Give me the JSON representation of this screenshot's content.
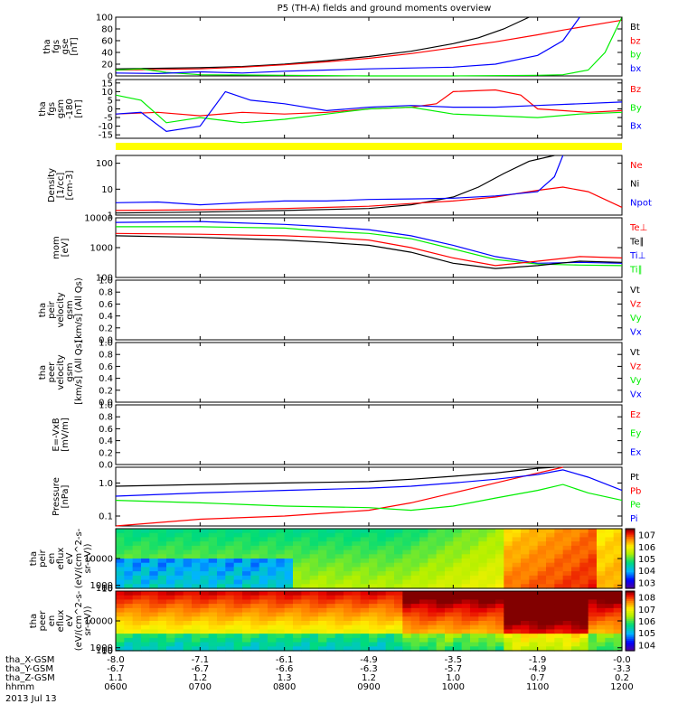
{
  "title": "P5 (TH-A) fields and ground moments overview",
  "date_label": "2013 Jul 13",
  "colors": {
    "black": "#000000",
    "red": "#ff0000",
    "green": "#00ee00",
    "blue": "#0000ff",
    "yellow": "#ffff00"
  },
  "chart_data": [
    {
      "type": "line",
      "ylabel": [
        "tha",
        "fgs",
        "gse",
        "[nT]"
      ],
      "ylim": [
        0,
        100
      ],
      "yticks": [
        "0",
        "20",
        "40",
        "60",
        "80",
        "100"
      ],
      "legend": [
        {
          "name": "Bt",
          "color": "#000000"
        },
        {
          "name": "bz",
          "color": "#ff0000"
        },
        {
          "name": "by",
          "color": "#00ee00"
        },
        {
          "name": "bx",
          "color": "#0000ff"
        }
      ],
      "series": [
        {
          "name": "Bt",
          "color": "#000000",
          "x": [
            6.0,
            7.0,
            7.5,
            8.0,
            8.5,
            9.0,
            9.5,
            10.0,
            10.3,
            10.6,
            10.9
          ],
          "y": [
            12,
            14,
            16,
            20,
            26,
            33,
            42,
            55,
            65,
            80,
            100
          ]
        },
        {
          "name": "bz",
          "color": "#ff0000",
          "x": [
            6.0,
            7.0,
            7.5,
            8.0,
            8.5,
            9.0,
            9.5,
            10.0,
            10.5,
            11.0,
            11.3,
            12.0
          ],
          "y": [
            10,
            12,
            15,
            19,
            24,
            30,
            38,
            48,
            58,
            70,
            78,
            95
          ]
        },
        {
          "name": "by",
          "color": "#00ee00",
          "x": [
            6.0,
            6.3,
            6.6,
            7.0,
            8.0,
            9.0,
            10.0,
            11.0,
            11.3,
            11.6,
            11.8,
            12.0
          ],
          "y": [
            10,
            12,
            6,
            2,
            1,
            0,
            0,
            1,
            2,
            10,
            40,
            100
          ]
        },
        {
          "name": "bx",
          "color": "#0000ff",
          "x": [
            6.0,
            6.5,
            7.0,
            7.5,
            8.0,
            8.5,
            9.0,
            10.0,
            10.5,
            11.0,
            11.3,
            11.5
          ],
          "y": [
            5,
            4,
            7,
            5,
            8,
            10,
            12,
            15,
            20,
            35,
            60,
            100
          ]
        }
      ]
    },
    {
      "type": "line",
      "ylabel": [
        "tha",
        "fgs",
        "gsm",
        "-180",
        "[nT]"
      ],
      "ylim": [
        -17,
        17
      ],
      "yticks": [
        "-15",
        "-10",
        "-5",
        "0",
        "5",
        "10",
        "15"
      ],
      "legend": [
        {
          "name": "Bz",
          "color": "#ff0000"
        },
        {
          "name": "By",
          "color": "#00ee00"
        },
        {
          "name": "Bx",
          "color": "#0000ff"
        }
      ],
      "series": [
        {
          "name": "Bz",
          "color": "#ff0000",
          "x": [
            6.0,
            6.5,
            7.0,
            7.5,
            8.0,
            8.5,
            9.0,
            9.5,
            9.8,
            10.0,
            10.5,
            10.8,
            11.0,
            11.3,
            11.6,
            12.0
          ],
          "y": [
            -3,
            -2,
            -4,
            -2,
            -3,
            -2,
            0,
            1,
            3,
            10,
            11,
            8,
            0,
            -1,
            -2,
            -1
          ]
        },
        {
          "name": "By",
          "color": "#00ee00",
          "x": [
            6.0,
            6.3,
            6.6,
            7.0,
            7.5,
            8.0,
            8.5,
            9.0,
            9.5,
            10.0,
            10.5,
            11.0,
            11.5,
            12.0
          ],
          "y": [
            8,
            5,
            -8,
            -5,
            -8,
            -6,
            -3,
            0,
            1,
            -3,
            -4,
            -5,
            -3,
            -2
          ]
        },
        {
          "name": "Bx",
          "color": "#0000ff",
          "x": [
            6.0,
            6.3,
            6.6,
            7.0,
            7.3,
            7.6,
            8.0,
            8.5,
            9.0,
            9.5,
            10.0,
            10.5,
            11.0,
            11.5,
            12.0
          ],
          "y": [
            -3,
            -2,
            -13,
            -10,
            10,
            5,
            3,
            -1,
            1,
            2,
            1,
            1,
            2,
            3,
            4
          ]
        }
      ]
    },
    {
      "type": "line",
      "log": true,
      "ylabel": [
        "Density",
        "[1/cc]",
        "[cm-3]"
      ],
      "ylim": [
        1,
        200
      ],
      "yticks": [
        "1",
        "10",
        "100"
      ],
      "legend": [
        {
          "name": "Ne",
          "color": "#ff0000"
        },
        {
          "name": "Ni",
          "color": "#000000"
        },
        {
          "name": "Npot",
          "color": "#0000ff"
        }
      ],
      "series": [
        {
          "name": "Ni",
          "color": "#000000",
          "x": [
            6.0,
            7.0,
            8.0,
            9.0,
            9.5,
            10.0,
            10.3,
            10.6,
            10.9,
            11.2
          ],
          "y": [
            1.2,
            1.3,
            1.5,
            1.8,
            2.5,
            5,
            12,
            40,
            120,
            200
          ]
        },
        {
          "name": "Ne",
          "color": "#ff0000",
          "x": [
            6.0,
            7.0,
            8.0,
            9.0,
            9.5,
            10.0,
            10.5,
            11.0,
            11.3,
            11.6,
            12.0
          ],
          "y": [
            1.5,
            1.6,
            1.8,
            2.2,
            2.8,
            3.5,
            5,
            9,
            12,
            8,
            2
          ]
        },
        {
          "name": "Npot",
          "color": "#0000ff",
          "x": [
            6.0,
            6.5,
            7.0,
            7.5,
            8.0,
            8.5,
            9.0,
            9.5,
            10.0,
            10.5,
            11.0,
            11.2,
            11.3
          ],
          "y": [
            3,
            3.2,
            2.5,
            3,
            3.5,
            3.5,
            4,
            4.2,
            4.5,
            5.5,
            8,
            30,
            200
          ]
        }
      ]
    },
    {
      "type": "line",
      "log": true,
      "ylabel": [
        "mom",
        "[eV]"
      ],
      "ylim": [
        100,
        10000
      ],
      "yticks": [
        "100",
        "1000",
        "10000"
      ],
      "legend": [
        {
          "name": "Te⊥",
          "color": "#ff0000"
        },
        {
          "name": "Te∥",
          "color": "#000000"
        },
        {
          "name": "Ti⊥",
          "color": "#0000ff"
        },
        {
          "name": "Ti∥",
          "color": "#00ee00"
        }
      ],
      "series": [
        {
          "name": "Ti⊥",
          "color": "#0000ff",
          "x": [
            6.0,
            7.0,
            8.0,
            8.5,
            9.0,
            9.5,
            10.0,
            10.5,
            11.0,
            11.5,
            12.0
          ],
          "y": [
            7000,
            7500,
            6000,
            5000,
            4000,
            2500,
            1200,
            500,
            300,
            320,
            300
          ]
        },
        {
          "name": "Ti∥",
          "color": "#00ee00",
          "x": [
            6.0,
            7.0,
            8.0,
            8.5,
            9.0,
            9.5,
            10.0,
            10.5,
            11.0,
            11.5,
            12.0
          ],
          "y": [
            5000,
            5000,
            4500,
            3500,
            3000,
            2000,
            900,
            400,
            280,
            260,
            250
          ]
        },
        {
          "name": "Te∥",
          "color": "#000000",
          "x": [
            6.0,
            7.0,
            8.0,
            8.5,
            9.0,
            9.5,
            10.0,
            10.5,
            11.0,
            11.5,
            12.0
          ],
          "y": [
            2500,
            2200,
            1800,
            1500,
            1200,
            700,
            300,
            200,
            250,
            350,
            320
          ]
        },
        {
          "name": "Te⊥",
          "color": "#ff0000",
          "x": [
            6.0,
            7.0,
            8.0,
            8.5,
            9.0,
            9.5,
            10.0,
            10.5,
            11.0,
            11.5,
            12.0
          ],
          "y": [
            3000,
            2800,
            2500,
            2200,
            1800,
            1000,
            450,
            250,
            350,
            500,
            450
          ]
        }
      ]
    },
    {
      "type": "line",
      "ylabel": [
        "tha",
        "peir",
        "velocity",
        "gsm",
        "[km/s] (All Qs)"
      ],
      "ylim": [
        0,
        1
      ],
      "yticks": [
        "0.0",
        "0.2",
        "0.4",
        "0.6",
        "0.8",
        "1.0"
      ],
      "legend": [
        {
          "name": "Vt",
          "color": "#000000"
        },
        {
          "name": "Vz",
          "color": "#ff0000"
        },
        {
          "name": "Vy",
          "color": "#00ee00"
        },
        {
          "name": "Vx",
          "color": "#0000ff"
        }
      ],
      "series": []
    },
    {
      "type": "line",
      "ylabel": [
        "tha",
        "peer",
        "velocity",
        "gsm",
        "[km/s] (All Qs)"
      ],
      "ylim": [
        0,
        1
      ],
      "yticks": [
        "0.0",
        "0.2",
        "0.4",
        "0.6",
        "0.8",
        "1.0"
      ],
      "legend": [
        {
          "name": "Vt",
          "color": "#000000"
        },
        {
          "name": "Vz",
          "color": "#ff0000"
        },
        {
          "name": "Vy",
          "color": "#00ee00"
        },
        {
          "name": "Vx",
          "color": "#0000ff"
        }
      ],
      "series": []
    },
    {
      "type": "line",
      "ylabel": [
        "E=-VxB",
        "[mV/m]"
      ],
      "ylim": [
        0,
        1
      ],
      "yticks": [
        "0.0",
        "0.2",
        "0.4",
        "0.6",
        "0.8",
        "1.0"
      ],
      "legend": [
        {
          "name": "Ez",
          "color": "#ff0000"
        },
        {
          "name": "Ey",
          "color": "#00ee00"
        },
        {
          "name": "Ex",
          "color": "#0000ff"
        }
      ],
      "series": []
    },
    {
      "type": "line",
      "log": true,
      "ylabel": [
        "Pressure",
        "[nPa]"
      ],
      "ylim": [
        0.05,
        3
      ],
      "yticks": [
        "0.1",
        "1.0"
      ],
      "legend": [
        {
          "name": "Pt",
          "color": "#000000"
        },
        {
          "name": "Pb",
          "color": "#ff0000"
        },
        {
          "name": "Pe",
          "color": "#00ee00"
        },
        {
          "name": "Pi",
          "color": "#0000ff"
        }
      ],
      "series": [
        {
          "name": "Pt",
          "color": "#000000",
          "x": [
            6.0,
            7.0,
            8.0,
            9.0,
            9.5,
            10.0,
            10.5,
            11.0,
            11.2
          ],
          "y": [
            0.8,
            0.9,
            1.0,
            1.1,
            1.3,
            1.6,
            2.0,
            2.8,
            3
          ]
        },
        {
          "name": "Pb",
          "color": "#ff0000",
          "x": [
            6.0,
            7.0,
            8.0,
            9.0,
            9.5,
            10.0,
            10.5,
            11.0,
            11.3
          ],
          "y": [
            0.05,
            0.08,
            0.1,
            0.15,
            0.25,
            0.5,
            1.0,
            2.0,
            3
          ]
        },
        {
          "name": "Pe",
          "color": "#00ee00",
          "x": [
            6.0,
            7.0,
            8.0,
            9.0,
            9.5,
            10.0,
            10.5,
            11.0,
            11.3,
            11.6,
            12.0
          ],
          "y": [
            0.3,
            0.25,
            0.2,
            0.18,
            0.15,
            0.2,
            0.35,
            0.6,
            0.9,
            0.5,
            0.3
          ]
        },
        {
          "name": "Pi",
          "color": "#0000ff",
          "x": [
            6.0,
            7.0,
            8.0,
            9.0,
            9.5,
            10.0,
            10.5,
            11.0,
            11.3,
            11.6,
            12.0
          ],
          "y": [
            0.4,
            0.5,
            0.6,
            0.7,
            0.8,
            1.0,
            1.3,
            1.8,
            2.5,
            1.5,
            0.6
          ]
        }
      ]
    },
    {
      "type": "heatmap",
      "ylabel": [
        "tha",
        "peir",
        "en",
        "eflux",
        "eV",
        "(eV/(cm^2-s-",
        "sr-eV))"
      ],
      "ylim": [
        10,
        20000
      ],
      "yticks": [
        "10",
        "100",
        "1000",
        "10000"
      ],
      "colorbar": {
        "ticks": [
          "10^3",
          "10^4",
          "10^5",
          "10^6",
          "10^7"
        ]
      }
    },
    {
      "type": "heatmap",
      "ylabel": [
        "tha",
        "peer",
        "en",
        "eflux",
        "eV",
        "(eV/(cm^2-s-",
        "sr-eV))"
      ],
      "ylim": [
        10,
        20000
      ],
      "yticks": [
        "10",
        "100",
        "1000",
        "10000"
      ],
      "colorbar": {
        "ticks": [
          "10^4",
          "10^5",
          "10^6",
          "10^7",
          "10^8"
        ]
      }
    }
  ],
  "xaxis": {
    "rows": [
      {
        "label": "tha_X-GSM",
        "values": [
          "-8.0",
          "-7.1",
          "-6.1",
          "-4.9",
          "-3.5",
          "-1.9",
          "-0.0"
        ]
      },
      {
        "label": "tha_Y-GSM",
        "values": [
          "-6.7",
          "-6.7",
          "-6.6",
          "-6.3",
          "-5.7",
          "-4.9",
          "-3.3"
        ]
      },
      {
        "label": "tha_Z-GSM",
        "values": [
          "1.1",
          "1.2",
          "1.3",
          "1.2",
          "1.0",
          "0.7",
          "0.2"
        ]
      },
      {
        "label": "hhmm",
        "values": [
          "0600",
          "0700",
          "0800",
          "0900",
          "1000",
          "1100",
          "1200"
        ]
      }
    ]
  }
}
